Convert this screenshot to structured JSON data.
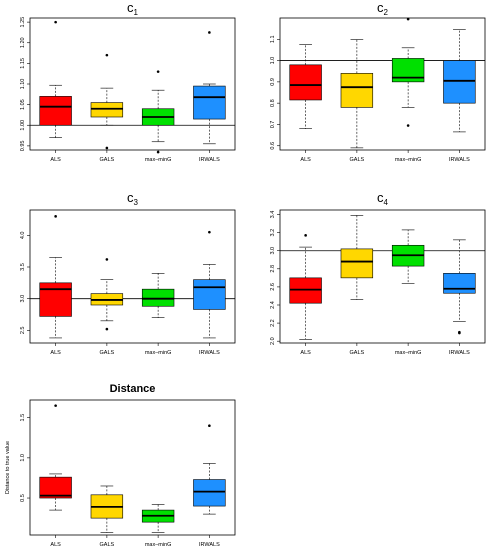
{
  "categories": [
    "ALS",
    "GALS",
    "max–minG",
    "IRWALS"
  ],
  "colors": {
    "ALS": "#ff0000",
    "GALS": "#ffd700",
    "max–minG": "#00e000",
    "IRWALS": "#1e90ff"
  },
  "chart_data": [
    {
      "type": "box",
      "title_main": "c",
      "title_sub": "1",
      "categories": [
        "ALS",
        "GALS",
        "max–minG",
        "IRWALS"
      ],
      "ylim": [
        0.94,
        1.26
      ],
      "yticks": [
        "0.95",
        "1.00",
        "1.05",
        "1.10",
        "1.15",
        "1.20",
        "1.25"
      ],
      "ytick_values": [
        0.95,
        1.0,
        1.05,
        1.1,
        1.15,
        1.2,
        1.25
      ],
      "reference_line": 1.0,
      "boxes": [
        {
          "whisker_low": 0.97,
          "q1": 1.0,
          "median": 1.045,
          "q3": 1.07,
          "whisker_high": 1.097,
          "outliers": [
            1.25
          ]
        },
        {
          "whisker_low": 1.0,
          "q1": 1.02,
          "median": 1.04,
          "q3": 1.055,
          "whisker_high": 1.09,
          "outliers": [
            1.17,
            0.945
          ]
        },
        {
          "whisker_low": 0.96,
          "q1": 1.0,
          "median": 1.02,
          "q3": 1.04,
          "whisker_high": 1.085,
          "outliers": [
            1.13,
            0.935
          ]
        },
        {
          "whisker_low": 0.955,
          "q1": 1.015,
          "median": 1.068,
          "q3": 1.095,
          "whisker_high": 1.1,
          "outliers": [
            1.225
          ]
        }
      ]
    },
    {
      "type": "box",
      "title_main": "c",
      "title_sub": "2",
      "categories": [
        "ALS",
        "GALS",
        "max–minG",
        "IRWALS"
      ],
      "ylim": [
        0.58,
        1.2
      ],
      "yticks": [
        "0.6",
        "0.7",
        "0.8",
        "0.9",
        "1.0",
        "1.1"
      ],
      "ytick_values": [
        0.6,
        0.7,
        0.8,
        0.9,
        1.0,
        1.1
      ],
      "reference_line": 1.0,
      "boxes": [
        {
          "whisker_low": 0.68,
          "q1": 0.815,
          "median": 0.885,
          "q3": 0.98,
          "whisker_high": 1.075,
          "outliers": []
        },
        {
          "whisker_low": 0.59,
          "q1": 0.78,
          "median": 0.875,
          "q3": 0.94,
          "whisker_high": 1.1,
          "outliers": []
        },
        {
          "whisker_low": 0.78,
          "q1": 0.9,
          "median": 0.92,
          "q3": 1.01,
          "whisker_high": 1.06,
          "outliers": [
            1.195,
            0.695
          ]
        },
        {
          "whisker_low": 0.665,
          "q1": 0.8,
          "median": 0.905,
          "q3": 1.0,
          "whisker_high": 1.145,
          "outliers": []
        }
      ]
    },
    {
      "type": "box",
      "title_main": "c",
      "title_sub": "3",
      "categories": [
        "ALS",
        "GALS",
        "max–minG",
        "IRWALS"
      ],
      "ylim": [
        2.3,
        4.4
      ],
      "yticks": [
        "2.5",
        "3.0",
        "3.5",
        "4.0"
      ],
      "ytick_values": [
        2.5,
        3.0,
        3.5,
        4.0
      ],
      "reference_line": 3.0,
      "boxes": [
        {
          "whisker_low": 2.38,
          "q1": 2.72,
          "median": 3.15,
          "q3": 3.25,
          "whisker_high": 3.65,
          "outliers": [
            4.3
          ]
        },
        {
          "whisker_low": 2.65,
          "q1": 2.9,
          "median": 2.98,
          "q3": 3.08,
          "whisker_high": 3.3,
          "outliers": [
            3.62,
            2.52
          ]
        },
        {
          "whisker_low": 2.7,
          "q1": 2.88,
          "median": 3.0,
          "q3": 3.15,
          "whisker_high": 3.4,
          "outliers": []
        },
        {
          "whisker_low": 2.38,
          "q1": 2.83,
          "median": 3.18,
          "q3": 3.3,
          "whisker_high": 3.54,
          "outliers": [
            4.05
          ]
        }
      ]
    },
    {
      "type": "box",
      "title_main": "c",
      "title_sub": "4",
      "categories": [
        "ALS",
        "GALS",
        "max–minG",
        "IRWALS"
      ],
      "ylim": [
        1.98,
        3.45
      ],
      "yticks": [
        "2.0",
        "2.2",
        "2.4",
        "2.6",
        "2.8",
        "3.0",
        "3.2",
        "3.4"
      ],
      "ytick_values": [
        2.0,
        2.2,
        2.4,
        2.6,
        2.8,
        3.0,
        3.2,
        3.4
      ],
      "reference_line": 3.0,
      "boxes": [
        {
          "whisker_low": 2.02,
          "q1": 2.42,
          "median": 2.57,
          "q3": 2.7,
          "whisker_high": 3.04,
          "outliers": [
            3.17
          ]
        },
        {
          "whisker_low": 2.46,
          "q1": 2.7,
          "median": 2.88,
          "q3": 3.02,
          "whisker_high": 3.39,
          "outliers": []
        },
        {
          "whisker_low": 2.64,
          "q1": 2.83,
          "median": 2.95,
          "q3": 3.06,
          "whisker_high": 3.23,
          "outliers": []
        },
        {
          "whisker_low": 2.22,
          "q1": 2.53,
          "median": 2.58,
          "q3": 2.75,
          "whisker_high": 3.12,
          "outliers": [
            2.1,
            2.09
          ]
        }
      ]
    },
    {
      "type": "box",
      "title_main": "Distance",
      "title_sub": "",
      "ylabel": "Distance to true value",
      "categories": [
        "ALS",
        "GALS",
        "max–minG",
        "IRWALS"
      ],
      "ylim": [
        0.04,
        1.72
      ],
      "yticks": [
        "0.5",
        "1.0",
        "1.5"
      ],
      "ytick_values": [
        0.5,
        1.0,
        1.5
      ],
      "reference_line": null,
      "boxes": [
        {
          "whisker_low": 0.35,
          "q1": 0.5,
          "median": 0.53,
          "q3": 0.76,
          "whisker_high": 0.8,
          "outliers": [
            1.65
          ]
        },
        {
          "whisker_low": 0.07,
          "q1": 0.25,
          "median": 0.39,
          "q3": 0.54,
          "whisker_high": 0.65,
          "outliers": []
        },
        {
          "whisker_low": 0.07,
          "q1": 0.2,
          "median": 0.28,
          "q3": 0.35,
          "whisker_high": 0.42,
          "outliers": []
        },
        {
          "whisker_low": 0.3,
          "q1": 0.4,
          "median": 0.58,
          "q3": 0.73,
          "whisker_high": 0.93,
          "outliers": [
            1.4
          ]
        }
      ]
    }
  ]
}
